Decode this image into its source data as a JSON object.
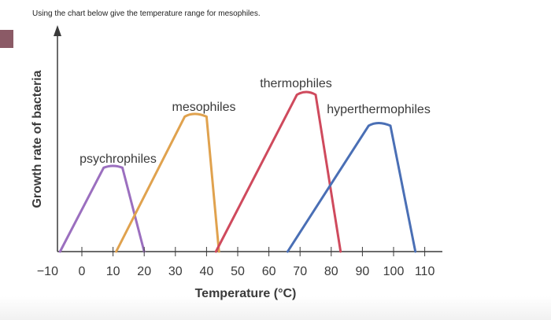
{
  "question": "Using the chart below give the temperature range for mesophiles.",
  "accent_color": "#8b5a66",
  "chart_data": {
    "type": "line",
    "title": "",
    "xlabel": "Temperature (°C)",
    "ylabel": "Growth rate of bacteria",
    "x_ticks": [
      -10,
      0,
      10,
      20,
      30,
      40,
      50,
      60,
      70,
      80,
      90,
      100,
      110
    ],
    "xlim": [
      -10,
      112
    ],
    "ylim": [
      0,
      1
    ],
    "grid": false,
    "legend": "none",
    "series": [
      {
        "name": "psychrophiles",
        "color": "#9b6fbf",
        "x": [
          -7,
          7,
          10,
          13,
          20
        ],
        "y": [
          0,
          0.46,
          0.48,
          0.46,
          0
        ]
      },
      {
        "name": "mesophiles",
        "color": "#e0a24e",
        "x": [
          11,
          33,
          36,
          40,
          44
        ],
        "y": [
          0,
          0.74,
          0.77,
          0.74,
          0
        ]
      },
      {
        "name": "thermophiles",
        "color": "#cf4a5d",
        "x": [
          43,
          69,
          72,
          75,
          83
        ],
        "y": [
          0,
          0.86,
          0.89,
          0.86,
          0
        ]
      },
      {
        "name": "hyperthermophiles",
        "color": "#4a6fb5",
        "x": [
          66,
          92,
          95,
          99,
          107
        ],
        "y": [
          0,
          0.69,
          0.72,
          0.69,
          0
        ]
      }
    ]
  }
}
